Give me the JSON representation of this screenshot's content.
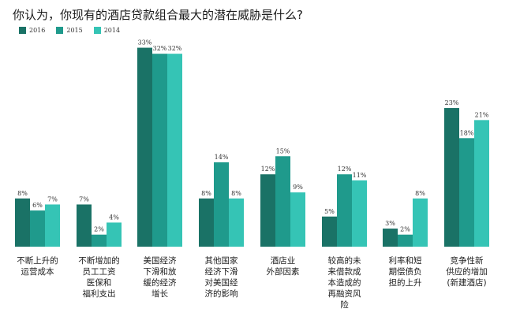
{
  "chart_data": {
    "type": "bar",
    "title": "你认为，你现有的酒店贷款组合最大的潜在威胁是什么?",
    "xlabel": "",
    "ylabel": "",
    "ylim": [
      0,
      35
    ],
    "grid": false,
    "legend_position": "top-left",
    "series": [
      {
        "name": "2016",
        "color": "#1a7266",
        "values": [
          8,
          7,
          33,
          8,
          12,
          5,
          3,
          23
        ]
      },
      {
        "name": "2015",
        "color": "#1f9a8c",
        "values": [
          6,
          2,
          32,
          14,
          15,
          12,
          2,
          18
        ]
      },
      {
        "name": "2014",
        "color": "#35c4b5",
        "values": [
          7,
          4,
          32,
          8,
          9,
          11,
          8,
          21
        ]
      }
    ],
    "categories": [
      [
        "不断上升的",
        "运营成本"
      ],
      [
        "不断增加的",
        "员工工资",
        "医保和",
        "福利支出"
      ],
      [
        "美国经济",
        "下滑和放",
        "缓的经济",
        "增长"
      ],
      [
        "其他国家",
        "经济下滑",
        "对美国经",
        "济的影响"
      ],
      [
        "酒店业",
        "外部因素"
      ],
      [
        "较高的未",
        "来借款成",
        "本造成的",
        "再融资风",
        "险"
      ],
      [
        "利率和短",
        "期偿债负",
        "担的上升"
      ],
      [
        "竞争性新",
        "供应的增加",
        "(新建酒店)"
      ]
    ]
  }
}
